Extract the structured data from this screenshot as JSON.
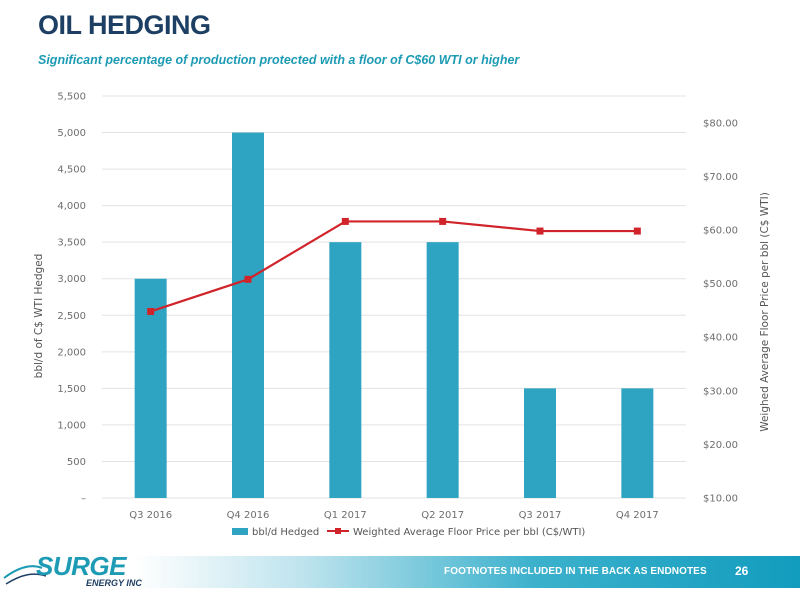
{
  "header": {
    "title": "OIL HEDGING",
    "subtitle": "Significant percentage of production protected with a floor of C$60 WTI or higher"
  },
  "footer": {
    "note": "FOOTNOTES INCLUDED IN THE BACK AS ENDNOTES",
    "page_number": "26"
  },
  "logo": {
    "name": "SURGE",
    "sub": "ENERGY INC"
  },
  "colors": {
    "title": "#1e3f64",
    "accent": "#1d9bb4",
    "bar": "#2fa3c2",
    "line": "#d0242a"
  },
  "chart_data": {
    "type": "bar",
    "categories": [
      "Q3 2016",
      "Q4 2016",
      "Q1 2017",
      "Q2 2017",
      "Q3 2017",
      "Q4 2017"
    ],
    "series": [
      {
        "name": "bbl/d Hedged",
        "type": "bar",
        "axis": "left",
        "values": [
          3000,
          5000,
          3500,
          3500,
          1500,
          1500
        ]
      },
      {
        "name": "Weighted Average Floor Price per bbl (C$/WTI)",
        "type": "line",
        "axis": "right",
        "values": [
          44.8,
          50.8,
          61.6,
          61.6,
          59.8,
          59.8
        ]
      }
    ],
    "ylabel": "bbl/d of C$ WTI Hedged",
    "y2label": "Weighed Average Floor Price per bbl (C$ WTI)",
    "ylim": [
      0,
      5500
    ],
    "y2lim": [
      10,
      85
    ],
    "yticks": [
      "–",
      "500",
      "1,000",
      "1,500",
      "2,000",
      "2,500",
      "3,000",
      "3,500",
      "4,000",
      "4,500",
      "5,000",
      "5,500"
    ],
    "y2ticks": [
      "$10.00",
      "$20.00",
      "$30.00",
      "$40.00",
      "$50.00",
      "$60.00",
      "$70.00",
      "$80.00"
    ],
    "legend_position": "bottom",
    "grid": true
  }
}
